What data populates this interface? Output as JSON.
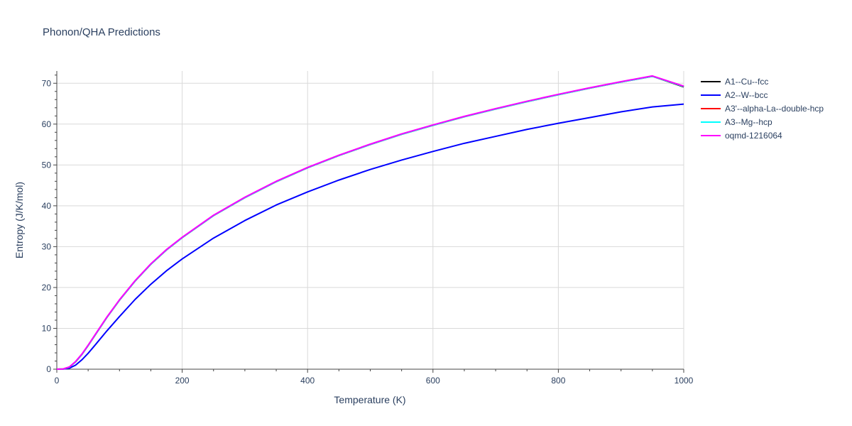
{
  "chart_data": {
    "type": "line",
    "title": "Phonon/QHA Predictions",
    "xlabel": "Temperature (K)",
    "ylabel": "Entropy (J/K/mol)",
    "xlim": [
      0,
      1000
    ],
    "ylim": [
      0,
      73
    ],
    "x_ticks": [
      0,
      200,
      400,
      600,
      800,
      1000
    ],
    "y_ticks": [
      0,
      10,
      20,
      30,
      40,
      50,
      60,
      70
    ],
    "grid": true,
    "legend_position": "right",
    "series": [
      {
        "name": "A1--Cu--fcc",
        "color": "#000000",
        "x": [
          0,
          10,
          20,
          30,
          40,
          50,
          60,
          80,
          100,
          125,
          150,
          175,
          200,
          250,
          300,
          350,
          400,
          450,
          500,
          550,
          600,
          650,
          700,
          750,
          800,
          850,
          900,
          950,
          1000
        ],
        "y": [
          0,
          0.05,
          0.5,
          1.8,
          3.6,
          5.8,
          8.1,
          12.7,
          16.9,
          21.6,
          25.7,
          29.2,
          32.2,
          37.6,
          42.0,
          45.9,
          49.3,
          52.3,
          55.0,
          57.5,
          59.7,
          61.8,
          63.7,
          65.5,
          67.2,
          68.8,
          70.3,
          71.7,
          69.1
        ]
      },
      {
        "name": "A2--W--bcc",
        "color": "#0000ff",
        "x": [
          0,
          10,
          20,
          30,
          40,
          50,
          60,
          80,
          100,
          125,
          150,
          175,
          200,
          250,
          300,
          350,
          400,
          450,
          500,
          550,
          600,
          650,
          700,
          750,
          800,
          850,
          900,
          950,
          1000
        ],
        "y": [
          0,
          0.02,
          0.25,
          1.0,
          2.3,
          3.9,
          5.7,
          9.4,
          12.9,
          17.1,
          20.8,
          24.1,
          27.0,
          32.1,
          36.4,
          40.2,
          43.4,
          46.3,
          48.9,
          51.2,
          53.3,
          55.3,
          57.0,
          58.7,
          60.2,
          61.6,
          63.0,
          64.2,
          64.9
        ]
      },
      {
        "name": "A3'--alpha-La--double-hcp",
        "color": "#ff0000",
        "x": [
          0,
          10,
          20,
          30,
          40,
          50,
          60,
          80,
          100,
          125,
          150,
          175,
          200,
          250,
          300,
          350,
          400,
          450,
          500,
          550,
          600,
          650,
          700,
          750,
          800,
          850,
          900,
          950,
          1000
        ],
        "y": [
          0,
          0.05,
          0.5,
          1.8,
          3.6,
          5.8,
          8.1,
          12.7,
          16.9,
          21.6,
          25.7,
          29.2,
          32.2,
          37.6,
          42.0,
          45.9,
          49.3,
          52.3,
          55.0,
          57.5,
          59.7,
          61.8,
          63.7,
          65.5,
          67.2,
          68.8,
          70.3,
          71.7,
          69.2
        ]
      },
      {
        "name": "A3--Mg--hcp",
        "color": "#00ffff",
        "x": [
          0,
          10,
          20,
          30,
          40,
          50,
          60,
          80,
          100,
          125,
          150,
          175,
          200,
          250,
          300,
          350,
          400,
          450,
          500,
          550,
          600,
          650,
          700,
          750,
          800,
          850,
          900,
          950,
          1000
        ],
        "y": [
          0,
          0.05,
          0.5,
          1.8,
          3.6,
          5.8,
          8.1,
          12.7,
          16.9,
          21.6,
          25.7,
          29.2,
          32.2,
          37.6,
          42.0,
          45.9,
          49.3,
          52.3,
          55.0,
          57.5,
          59.7,
          61.8,
          63.7,
          65.5,
          67.2,
          68.8,
          70.3,
          71.7,
          69.2
        ]
      },
      {
        "name": "oqmd-1216064",
        "color": "#ff00ff",
        "x": [
          0,
          10,
          20,
          30,
          40,
          50,
          60,
          80,
          100,
          125,
          150,
          175,
          200,
          250,
          300,
          350,
          400,
          450,
          500,
          550,
          600,
          650,
          700,
          750,
          800,
          850,
          900,
          950,
          1000
        ],
        "y": [
          0,
          0.05,
          0.55,
          1.9,
          3.7,
          5.9,
          8.2,
          12.8,
          17.0,
          21.7,
          25.8,
          29.3,
          32.3,
          37.7,
          42.1,
          46.0,
          49.4,
          52.4,
          55.1,
          57.6,
          59.8,
          61.9,
          63.8,
          65.6,
          67.3,
          68.9,
          70.4,
          71.8,
          69.3
        ]
      }
    ]
  }
}
